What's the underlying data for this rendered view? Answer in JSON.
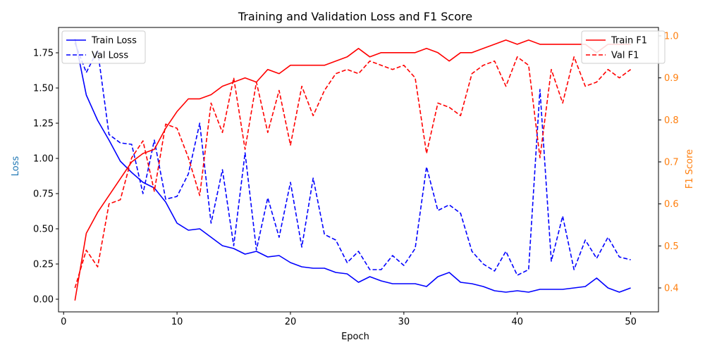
{
  "chart_data": {
    "type": "line",
    "title": "Training and Validation Loss and F1 Score",
    "xlabel": "Epoch",
    "ylabel_left": "Loss",
    "ylabel_right": "F1 Score",
    "xlim": [
      -0.45,
      52.45
    ],
    "ylim_left": [
      -0.09,
      1.93
    ],
    "ylim_right": [
      0.343,
      1.02
    ],
    "xticks": [
      0,
      10,
      20,
      30,
      40,
      50
    ],
    "yticks_left": [
      0.0,
      0.25,
      0.5,
      0.75,
      1.0,
      1.25,
      1.5,
      1.75
    ],
    "yticks_left_labels": [
      "0.00",
      "0.25",
      "0.50",
      "0.75",
      "1.00",
      "1.25",
      "1.50",
      "1.75"
    ],
    "yticks_right": [
      0.4,
      0.5,
      0.6,
      0.7,
      0.8,
      0.9,
      1.0
    ],
    "yticks_right_labels": [
      "0.4",
      "0.5",
      "0.6",
      "0.7",
      "0.8",
      "0.9",
      "1.0"
    ],
    "colors": {
      "loss": "#0000ff",
      "f1": "#ff0000",
      "right_axis": "#ff7f0e",
      "left_axis_label": "#1f77b4"
    },
    "x": [
      1,
      2,
      3,
      4,
      5,
      6,
      7,
      8,
      9,
      10,
      11,
      12,
      13,
      14,
      15,
      16,
      17,
      18,
      19,
      20,
      21,
      22,
      23,
      24,
      25,
      26,
      27,
      28,
      29,
      30,
      31,
      32,
      33,
      34,
      35,
      36,
      37,
      38,
      39,
      40,
      41,
      42,
      43,
      44,
      45,
      46,
      47,
      48,
      49,
      50
    ],
    "series": [
      {
        "name": "Train Loss",
        "axis": "left",
        "color": "#0000ff",
        "dash": false,
        "values": [
          1.85,
          1.45,
          1.27,
          1.13,
          0.98,
          0.9,
          0.83,
          0.79,
          0.69,
          0.54,
          0.49,
          0.5,
          0.44,
          0.38,
          0.36,
          0.32,
          0.34,
          0.3,
          0.31,
          0.26,
          0.23,
          0.22,
          0.22,
          0.19,
          0.18,
          0.12,
          0.16,
          0.13,
          0.11,
          0.11,
          0.11,
          0.09,
          0.16,
          0.19,
          0.12,
          0.11,
          0.09,
          0.06,
          0.05,
          0.06,
          0.05,
          0.07,
          0.07,
          0.07,
          0.08,
          0.09,
          0.15,
          0.08,
          0.05,
          0.08
        ]
      },
      {
        "name": "Val Loss",
        "axis": "left",
        "color": "#0000ff",
        "dash": true,
        "values": [
          1.82,
          1.61,
          1.77,
          1.17,
          1.11,
          1.1,
          0.75,
          1.13,
          0.71,
          0.73,
          0.89,
          1.25,
          0.54,
          0.92,
          0.38,
          1.04,
          0.35,
          0.72,
          0.44,
          0.83,
          0.37,
          0.86,
          0.46,
          0.42,
          0.26,
          0.34,
          0.21,
          0.21,
          0.31,
          0.24,
          0.36,
          0.94,
          0.63,
          0.67,
          0.61,
          0.34,
          0.25,
          0.2,
          0.34,
          0.17,
          0.21,
          1.49,
          0.27,
          0.59,
          0.21,
          0.42,
          0.29,
          0.44,
          0.3,
          0.28
        ]
      },
      {
        "name": "Train F1",
        "axis": "right",
        "color": "#ff0000",
        "dash": false,
        "values": [
          0.37,
          0.53,
          0.58,
          0.62,
          0.66,
          0.7,
          0.72,
          0.73,
          0.78,
          0.82,
          0.85,
          0.85,
          0.86,
          0.88,
          0.89,
          0.9,
          0.89,
          0.92,
          0.91,
          0.93,
          0.93,
          0.93,
          0.93,
          0.94,
          0.95,
          0.97,
          0.95,
          0.96,
          0.96,
          0.96,
          0.96,
          0.97,
          0.96,
          0.94,
          0.96,
          0.96,
          0.97,
          0.98,
          0.99,
          0.98,
          0.99,
          0.98,
          0.98,
          0.98,
          0.98,
          0.98,
          0.96,
          0.98,
          0.98,
          0.98
        ]
      },
      {
        "name": "Val F1",
        "axis": "right",
        "color": "#ff0000",
        "dash": true,
        "values": [
          0.4,
          0.49,
          0.45,
          0.6,
          0.61,
          0.71,
          0.75,
          0.63,
          0.79,
          0.78,
          0.71,
          0.62,
          0.84,
          0.77,
          0.9,
          0.73,
          0.89,
          0.77,
          0.87,
          0.74,
          0.88,
          0.81,
          0.87,
          0.91,
          0.92,
          0.91,
          0.94,
          0.93,
          0.92,
          0.93,
          0.9,
          0.72,
          0.84,
          0.83,
          0.81,
          0.91,
          0.93,
          0.94,
          0.88,
          0.95,
          0.93,
          0.71,
          0.92,
          0.84,
          0.95,
          0.88,
          0.89,
          0.92,
          0.9,
          0.92
        ]
      }
    ],
    "legends": [
      {
        "placement": "upper-left",
        "entries": [
          "Train Loss",
          "Val Loss"
        ]
      },
      {
        "placement": "upper-right",
        "entries": [
          "Train F1",
          "Val F1"
        ]
      }
    ],
    "grid": false
  }
}
